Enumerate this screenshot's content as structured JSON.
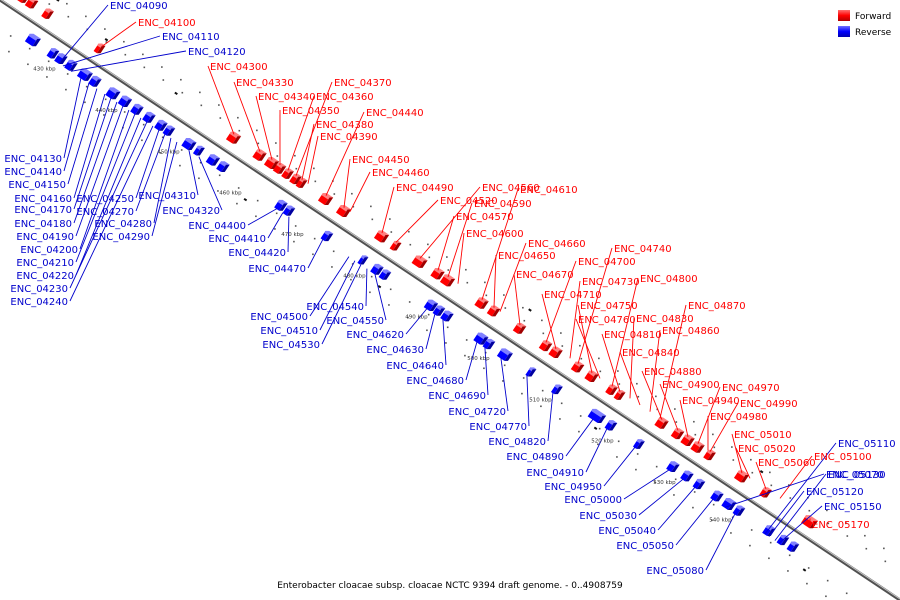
{
  "caption": "Enterobacter cloacae subsp. cloacae NCTC 9394 draft genome. - 0..4908759",
  "colors": {
    "forward": "#ff0000",
    "reverse": "#0000ff",
    "backbone": "#808080"
  },
  "legend": {
    "forward": "Forward",
    "reverse": "Reverse"
  },
  "kbp_marks": [
    "430 kbp",
    "440 kbp",
    "450 kbp",
    "460 kbp",
    "470 kbp",
    "480 kbp",
    "490 kbp",
    "500 kbp",
    "510 kbp",
    "520 kbp",
    "530 kbp",
    "540 kbp"
  ],
  "forward_labels": [
    "ENC_04100",
    "ENC_04300",
    "ENC_04330",
    "ENC_04340",
    "ENC_04350",
    "ENC_04360",
    "ENC_04370",
    "ENC_04380",
    "ENC_04390",
    "ENC_04440",
    "ENC_04450",
    "ENC_04460",
    "ENC_04490",
    "ENC_04520",
    "ENC_04560",
    "ENC_04570",
    "ENC_04590",
    "ENC_04600",
    "ENC_04610",
    "ENC_04650",
    "ENC_04660",
    "ENC_04670",
    "ENC_04700",
    "ENC_04710",
    "ENC_04730",
    "ENC_04740",
    "ENC_04750",
    "ENC_04760",
    "ENC_04800",
    "ENC_04810",
    "ENC_04830",
    "ENC_04840",
    "ENC_04860",
    "ENC_04870",
    "ENC_04880",
    "ENC_04900",
    "ENC_04940",
    "ENC_04970",
    "ENC_04980",
    "ENC_04990",
    "ENC_05010",
    "ENC_05020",
    "ENC_05060",
    "ENC_05100",
    "ENC_05170"
  ],
  "reverse_labels": [
    "ENC_04090",
    "ENC_04110",
    "ENC_04120",
    "ENC_04130",
    "ENC_04140",
    "ENC_04150",
    "ENC_04160",
    "ENC_04170",
    "ENC_04180",
    "ENC_04190",
    "ENC_04200",
    "ENC_04210",
    "ENC_04220",
    "ENC_04230",
    "ENC_04240",
    "ENC_04250",
    "ENC_04270",
    "ENC_04280",
    "ENC_04290",
    "ENC_04310",
    "ENC_04320",
    "ENC_04400",
    "ENC_04410",
    "ENC_04420",
    "ENC_04470",
    "ENC_04500",
    "ENC_04510",
    "ENC_04530",
    "ENC_04540",
    "ENC_04550",
    "ENC_04620",
    "ENC_04630",
    "ENC_04640",
    "ENC_04680",
    "ENC_04690",
    "ENC_04720",
    "ENC_04770",
    "ENC_04820",
    "ENC_04890",
    "ENC_04910",
    "ENC_04950",
    "ENC_05000",
    "ENC_05030",
    "ENC_05040",
    "ENC_05050",
    "ENC_05070",
    "ENC_05080",
    "ENC_05110",
    "ENC_05120",
    "ENC_05130",
    "ENC_05150"
  ]
}
